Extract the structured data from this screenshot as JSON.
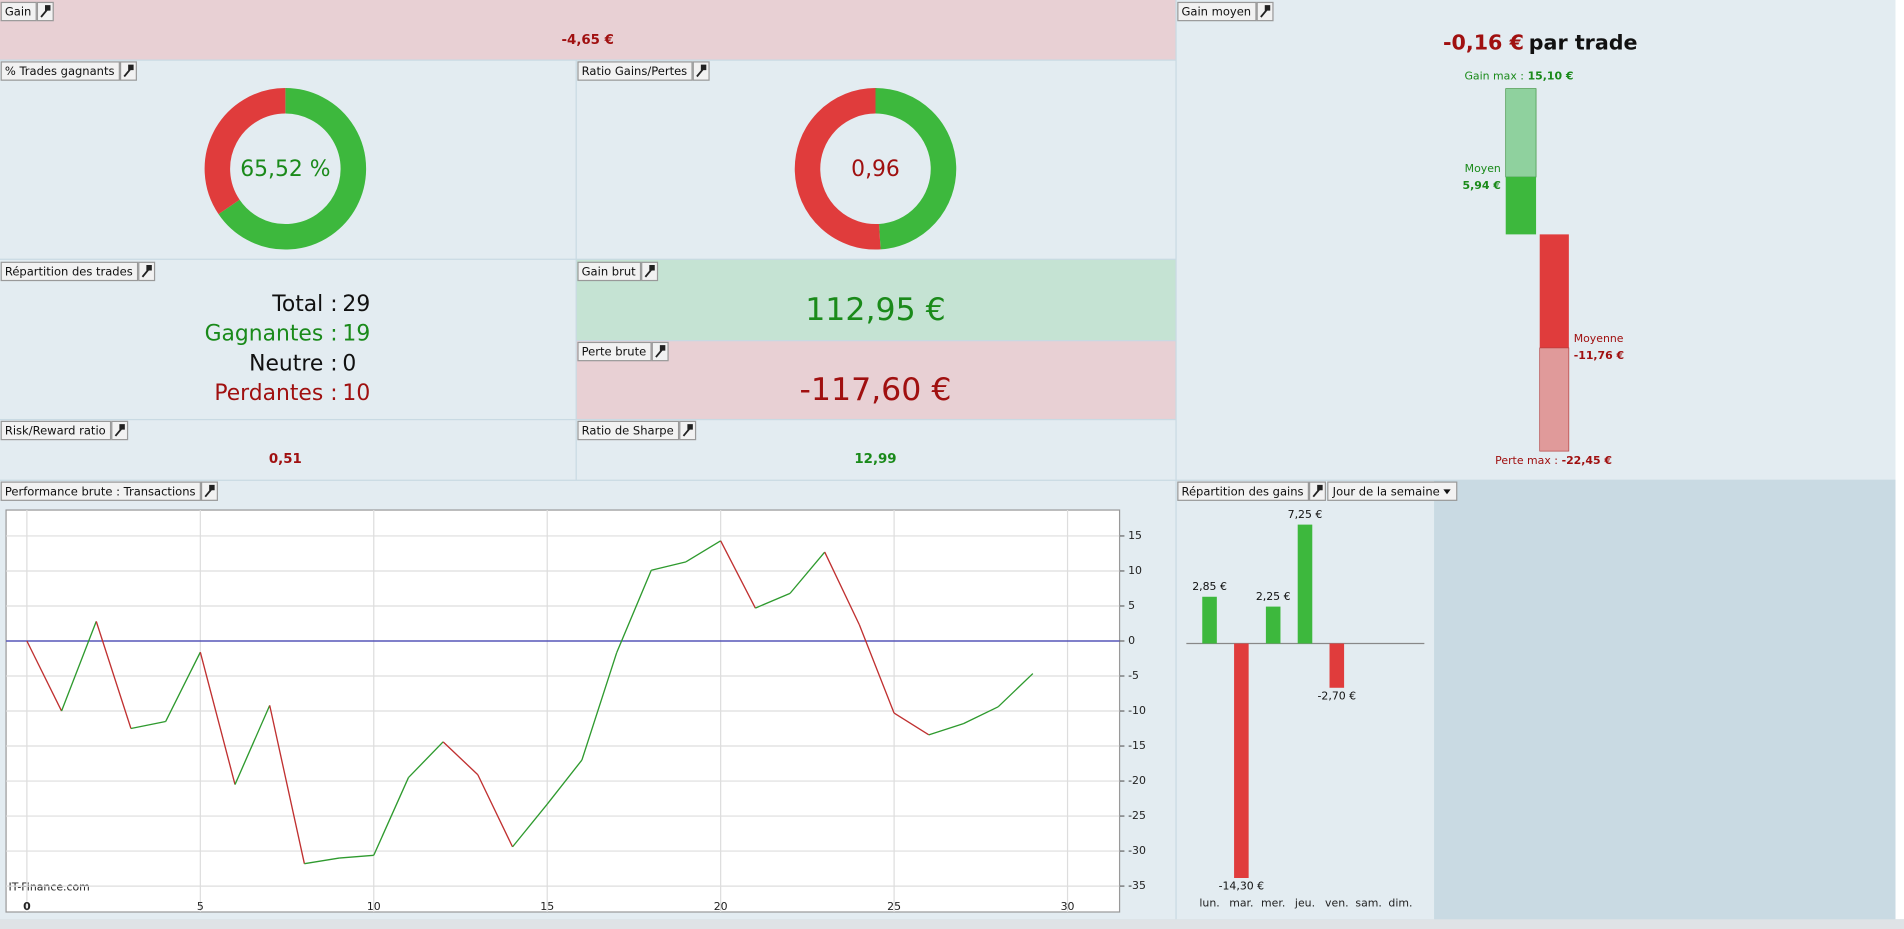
{
  "panels": {
    "gain": {
      "title": "Gain",
      "value": "-4,65 €"
    },
    "gain_moyen": {
      "title": "Gain moyen",
      "value": -0.16,
      "value_label": "-0,16 €",
      "suffix": "par trade",
      "bars": [
        {
          "label": "Gain max :",
          "value": 15.1,
          "value_label": "15,10 €"
        },
        {
          "label": "Moyen",
          "value": 5.94,
          "value_label": "5,94 €"
        },
        {
          "label": "Moyenne",
          "value": -11.76,
          "value_label": "-11,76 €"
        },
        {
          "label": "Perte max :",
          "value": -22.45,
          "value_label": "-22,45 €"
        }
      ]
    },
    "trades_gagnants": {
      "title": "% Trades gagnants",
      "value": 65.52,
      "value_label": "65,52 %"
    },
    "ratio": {
      "title": "Ratio Gains/Pertes",
      "value": 0.96,
      "value_label": "0,96"
    },
    "repartition_trades": {
      "title": "Répartition des trades",
      "rows": [
        {
          "label": "Total :",
          "value": 29
        },
        {
          "label": "Gagnantes :",
          "value": 19
        },
        {
          "label": "Neutre :",
          "value": 0
        },
        {
          "label": "Perdantes :",
          "value": 10
        }
      ]
    },
    "gain_brut": {
      "title": "Gain brut",
      "value": 112.95,
      "value_label": "112,95 €"
    },
    "perte_brute": {
      "title": "Perte brute",
      "value": -117.6,
      "value_label": "-117,60 €"
    },
    "risk_reward": {
      "title": "Risk/Reward ratio",
      "value": "0,51"
    },
    "sharpe": {
      "title": "Ratio de Sharpe",
      "value": "12,99"
    },
    "performance": {
      "title": "Performance brute : Transactions",
      "watermark": "IT-Finance.com",
      "chart_data": {
        "type": "line",
        "x": [
          0,
          1,
          2,
          3,
          4,
          5,
          6,
          7,
          8,
          9,
          10,
          11,
          12,
          13,
          14,
          15,
          16,
          17,
          18,
          19,
          20,
          21,
          22,
          23,
          24,
          25,
          26,
          27,
          28,
          29
        ],
        "values": [
          0,
          -10,
          2.8,
          -12.5,
          -11.5,
          -1.6,
          -20.5,
          -9.2,
          -31.8,
          -31,
          -30.6,
          -19.5,
          -14.4,
          -19.1,
          -29.4,
          -23.3,
          -17,
          -1.7,
          10.1,
          11.3,
          14.3,
          4.7,
          6.8,
          12.7,
          2.3,
          -10.3,
          -13.4,
          -11.8,
          -9.4,
          -4.65
        ],
        "xlim": [
          -0.6,
          31.5
        ],
        "ylim": [
          -38.7,
          18.7
        ],
        "xticks": [
          0,
          5,
          10,
          15,
          20,
          25,
          30
        ],
        "yticks": [
          15,
          10,
          5,
          0,
          -5,
          -10,
          -15,
          -20,
          -25,
          -30,
          -35
        ],
        "grid": true,
        "up_color": "#2e9a2e",
        "down_color": "#c03030",
        "zero_line_color": "#3a3ab0"
      }
    },
    "repartition_gains": {
      "title": "Répartition des gains",
      "dropdown": "Jour de la semaine",
      "chart_data": {
        "type": "bar",
        "categories": [
          "lun.",
          "mar.",
          "mer.",
          "jeu.",
          "ven.",
          "sam.",
          "dim."
        ],
        "values": [
          2.85,
          -14.3,
          2.25,
          7.25,
          -2.7,
          null,
          null
        ],
        "value_labels": [
          "2,85 €",
          "-14,30 €",
          "2,25 €",
          "7,25 €",
          "-2,70 €",
          null,
          null
        ],
        "positive_color": "#3db83d",
        "negative_color": "#e03c3c"
      }
    }
  }
}
